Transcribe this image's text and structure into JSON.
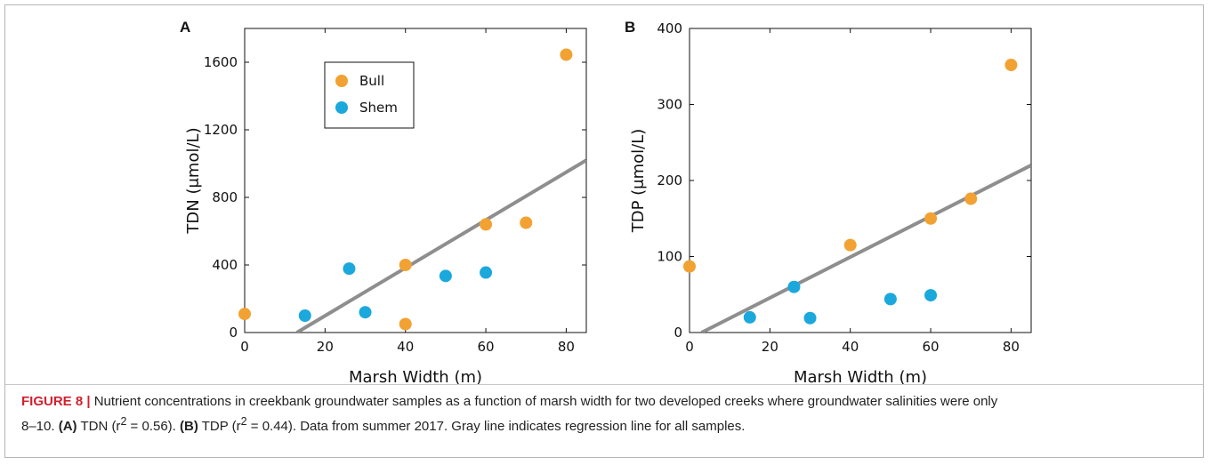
{
  "colors": {
    "bull": "#f2a232",
    "shem": "#1ba8dc",
    "regression": "#8e8e8e",
    "caption_label": "#d2202f"
  },
  "chart_data": [
    {
      "type": "scatter",
      "panel": "A",
      "xlabel": "Marsh Width (m)",
      "ylabel": "TDN (μmol/L)",
      "xlim": [
        0,
        85
      ],
      "ylim": [
        0,
        1800
      ],
      "xticks": [
        0,
        20,
        40,
        60,
        80
      ],
      "yticks": [
        0,
        400,
        800,
        1200,
        1600
      ],
      "legend": {
        "position": "upper-left",
        "entries": [
          "Bull",
          "Shem"
        ]
      },
      "series": [
        {
          "name": "Bull",
          "color": "#f2a232",
          "points": [
            [
              0,
              110
            ],
            [
              40,
              400
            ],
            [
              40,
              50
            ],
            [
              60,
              640
            ],
            [
              70,
              650
            ],
            [
              80,
              1645
            ]
          ]
        },
        {
          "name": "Shem",
          "color": "#1ba8dc",
          "points": [
            [
              15,
              100
            ],
            [
              26,
              378
            ],
            [
              30,
              120
            ],
            [
              50,
              335
            ],
            [
              60,
              355
            ]
          ]
        }
      ],
      "regression": {
        "x": [
          13,
          85
        ],
        "y": [
          0,
          1020
        ]
      }
    },
    {
      "type": "scatter",
      "panel": "B",
      "xlabel": "Marsh Width (m)",
      "ylabel": "TDP (μmol/L)",
      "xlim": [
        0,
        85
      ],
      "ylim": [
        0,
        400
      ],
      "xticks": [
        0,
        20,
        40,
        60,
        80
      ],
      "yticks": [
        0,
        100,
        200,
        300,
        400
      ],
      "series": [
        {
          "name": "Bull",
          "color": "#f2a232",
          "points": [
            [
              0,
              87
            ],
            [
              40,
              115
            ],
            [
              60,
              150
            ],
            [
              70,
              176
            ],
            [
              80,
              352
            ]
          ]
        },
        {
          "name": "Shem",
          "color": "#1ba8dc",
          "points": [
            [
              15,
              20
            ],
            [
              26,
              60
            ],
            [
              30,
              19
            ],
            [
              50,
              44
            ],
            [
              60,
              49
            ]
          ]
        }
      ],
      "regression": {
        "x": [
          3,
          85
        ],
        "y": [
          0,
          220
        ]
      }
    }
  ],
  "caption": {
    "label": "FIGURE 8 |",
    "line1": " Nutrient concentrations in creekbank groundwater samples as a function of marsh width for two developed creeks where groundwater salinities were only",
    "line2a": "8–10. ",
    "ref_a": "(A)",
    "text_a": " TDN (r",
    "sup": "2",
    "text_a2": " = 0.56). ",
    "ref_b": "(B)",
    "text_b": " TDP (r",
    "text_b2": " = 0.44). Data from summer 2017. Gray line indicates regression line for all samples."
  }
}
